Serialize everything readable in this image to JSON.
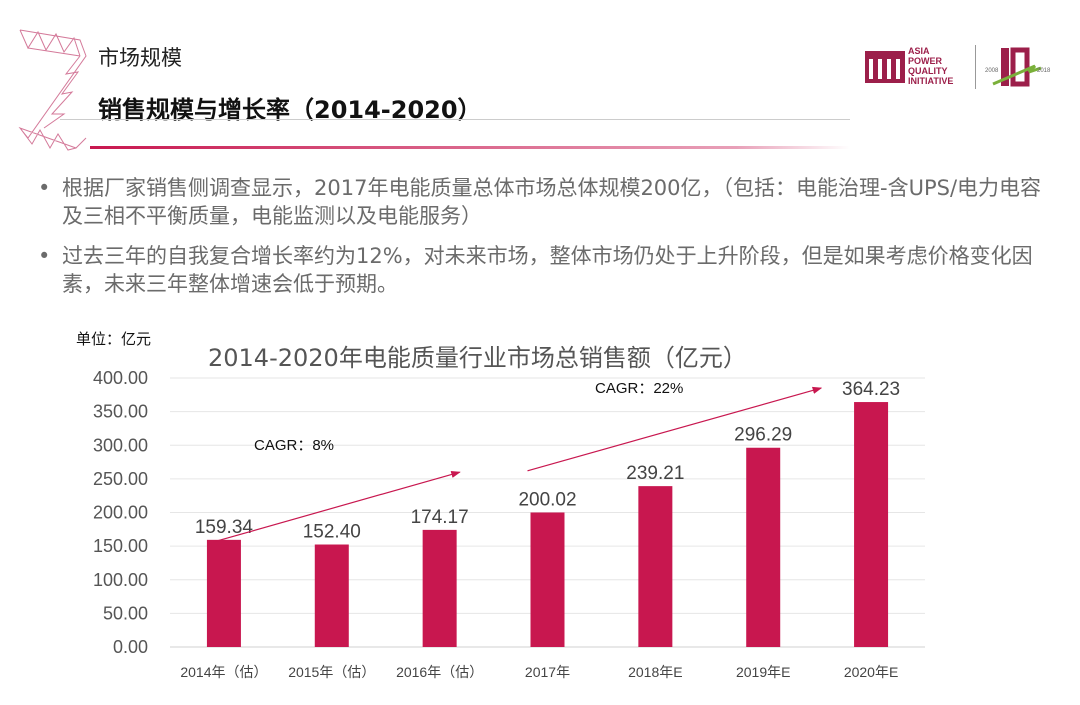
{
  "header": {
    "section": "市场规模",
    "title": "销售规模与增长率（2014-2020）",
    "logo": {
      "text": [
        "ASIA",
        "POWER",
        "QUALITY",
        "INITIATIVE"
      ],
      "brand": "apqi",
      "anniversary": {
        "start": "2008",
        "end": "2018",
        "number": "10"
      }
    }
  },
  "bullets": [
    "根据厂家销售侧调查显示，2017年电能质量总体市场总体规模200亿，（包括：电能治理-含UPS/电力电容及三相不平衡质量，电能监测以及电能服务）",
    "过去三年的自我复合增长率约为12%，对未来市场，整体市场仍处于上升阶段，但是如果考虑价格变化因素，未来三年整体增速会低于预期。"
  ],
  "bullet_symbol": "•",
  "chart_data": {
    "type": "bar",
    "title": "2014-2020年电能质量行业市场总销售额（亿元）",
    "unit_label": "单位：亿元",
    "categories": [
      "2014年（估）",
      "2015年（估）",
      "2016年（估）",
      "2017年",
      "2018年E",
      "2019年E",
      "2020年E"
    ],
    "values": [
      159.34,
      152.4,
      174.17,
      200.02,
      239.21,
      296.29,
      364.23
    ],
    "data_labels": [
      "159.34",
      "152.40",
      "174.17",
      "200.02",
      "239.21",
      "296.29",
      "364.23"
    ],
    "ylim": [
      0,
      400
    ],
    "yticks": [
      "0.00",
      "50.00",
      "100.00",
      "150.00",
      "200.00",
      "250.00",
      "300.00",
      "350.00",
      "400.00"
    ],
    "grid": true,
    "bar_color": "#c8174f",
    "annotations": [
      {
        "text": "CAGR：8%",
        "from": "2014年（估）",
        "to": "2016年（估）"
      },
      {
        "text": "CAGR：22%",
        "from": "2017年",
        "to": "2020年E"
      }
    ]
  }
}
